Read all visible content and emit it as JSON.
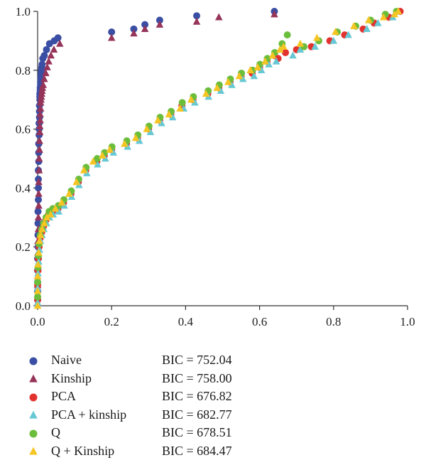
{
  "chart_data": {
    "type": "scatter",
    "title": "",
    "xlabel": "",
    "ylabel": "",
    "xlim": [
      0.0,
      1.0
    ],
    "ylim": [
      0.0,
      1.0
    ],
    "x_ticks": [
      "0.0",
      "0.2",
      "0.4",
      "0.6",
      "0.8",
      "1.0"
    ],
    "y_ticks": [
      "0.0",
      "0.2",
      "0.4",
      "0.6",
      "0.8",
      "1.0"
    ],
    "grid": false,
    "legend_position": "bottom",
    "series": [
      {
        "name": "Naive",
        "bic": "BIC = 752.04",
        "marker": "circle",
        "color": "#3a4ea3",
        "x": [
          0.0,
          0.0,
          0.0,
          0.0,
          0.0,
          0.001,
          0.001,
          0.001,
          0.001,
          0.002,
          0.002,
          0.002,
          0.002,
          0.003,
          0.003,
          0.003,
          0.004,
          0.004,
          0.004,
          0.005,
          0.005,
          0.005,
          0.006,
          0.006,
          0.006,
          0.007,
          0.007,
          0.008,
          0.008,
          0.009,
          0.009,
          0.01,
          0.01,
          0.011,
          0.012,
          0.014,
          0.018,
          0.024,
          0.032,
          0.045,
          0.055,
          0.2,
          0.26,
          0.29,
          0.33,
          0.43,
          0.64
        ],
        "y": [
          0.02,
          0.05,
          0.08,
          0.12,
          0.16,
          0.2,
          0.24,
          0.28,
          0.32,
          0.36,
          0.4,
          0.43,
          0.46,
          0.49,
          0.52,
          0.55,
          0.58,
          0.6,
          0.62,
          0.64,
          0.66,
          0.68,
          0.7,
          0.71,
          0.72,
          0.73,
          0.74,
          0.75,
          0.76,
          0.77,
          0.78,
          0.79,
          0.8,
          0.81,
          0.82,
          0.84,
          0.85,
          0.87,
          0.89,
          0.9,
          0.91,
          0.93,
          0.94,
          0.955,
          0.97,
          0.985,
          1.0
        ]
      },
      {
        "name": "Kinship",
        "bic": "BIC = 758.00",
        "marker": "triangle",
        "color": "#96345a",
        "x": [
          0.0,
          0.0,
          0.0,
          0.0,
          0.001,
          0.001,
          0.001,
          0.002,
          0.002,
          0.003,
          0.003,
          0.003,
          0.004,
          0.004,
          0.005,
          0.005,
          0.006,
          0.006,
          0.007,
          0.007,
          0.008,
          0.008,
          0.009,
          0.01,
          0.011,
          0.012,
          0.013,
          0.015,
          0.018,
          0.022,
          0.026,
          0.03,
          0.036,
          0.044,
          0.06,
          0.2,
          0.26,
          0.29,
          0.33,
          0.43,
          0.49,
          0.64
        ],
        "y": [
          0.01,
          0.04,
          0.07,
          0.1,
          0.14,
          0.18,
          0.22,
          0.26,
          0.3,
          0.34,
          0.38,
          0.42,
          0.46,
          0.5,
          0.53,
          0.56,
          0.59,
          0.61,
          0.63,
          0.65,
          0.67,
          0.69,
          0.7,
          0.71,
          0.72,
          0.73,
          0.74,
          0.75,
          0.77,
          0.79,
          0.81,
          0.83,
          0.85,
          0.87,
          0.89,
          0.91,
          0.925,
          0.94,
          0.955,
          0.965,
          0.98,
          0.99
        ]
      },
      {
        "name": "PCA",
        "bic": "BIC = 676.82",
        "marker": "circle",
        "color": "#e2322f",
        "x": [
          0.0,
          0.0,
          0.001,
          0.002,
          0.004,
          0.007,
          0.011,
          0.016,
          0.022,
          0.03,
          0.04,
          0.055,
          0.07,
          0.09,
          0.11,
          0.13,
          0.16,
          0.18,
          0.2,
          0.24,
          0.27,
          0.3,
          0.33,
          0.36,
          0.39,
          0.42,
          0.46,
          0.49,
          0.52,
          0.55,
          0.58,
          0.6,
          0.62,
          0.64,
          0.65,
          0.67,
          0.7,
          0.74,
          0.79,
          0.83,
          0.88,
          0.91,
          0.95,
          0.98
        ],
        "y": [
          0.02,
          0.07,
          0.12,
          0.16,
          0.2,
          0.23,
          0.25,
          0.27,
          0.29,
          0.31,
          0.32,
          0.33,
          0.35,
          0.38,
          0.42,
          0.46,
          0.49,
          0.51,
          0.53,
          0.55,
          0.57,
          0.6,
          0.63,
          0.65,
          0.68,
          0.7,
          0.72,
          0.74,
          0.76,
          0.78,
          0.79,
          0.81,
          0.83,
          0.85,
          0.84,
          0.86,
          0.87,
          0.88,
          0.9,
          0.92,
          0.94,
          0.96,
          0.98,
          1.0
        ]
      },
      {
        "name": "PCA + kinship",
        "bic": "BIC = 682.77",
        "marker": "triangle",
        "color": "#66c8d4",
        "x": [
          0.0,
          0.0,
          0.001,
          0.003,
          0.005,
          0.008,
          0.012,
          0.017,
          0.024,
          0.032,
          0.042,
          0.057,
          0.072,
          0.092,
          0.112,
          0.133,
          0.162,
          0.183,
          0.205,
          0.243,
          0.275,
          0.305,
          0.335,
          0.365,
          0.395,
          0.425,
          0.462,
          0.495,
          0.525,
          0.555,
          0.585,
          0.605,
          0.625,
          0.645,
          0.69,
          0.71,
          0.75,
          0.8,
          0.84,
          0.89,
          0.92,
          0.96
        ],
        "y": [
          0.01,
          0.06,
          0.11,
          0.15,
          0.19,
          0.22,
          0.24,
          0.26,
          0.28,
          0.3,
          0.31,
          0.32,
          0.34,
          0.37,
          0.41,
          0.45,
          0.48,
          0.5,
          0.52,
          0.54,
          0.56,
          0.59,
          0.62,
          0.64,
          0.67,
          0.69,
          0.71,
          0.73,
          0.75,
          0.77,
          0.78,
          0.8,
          0.82,
          0.83,
          0.85,
          0.87,
          0.88,
          0.9,
          0.92,
          0.94,
          0.96,
          0.98
        ]
      },
      {
        "name": "Q",
        "bic": "BIC = 678.51",
        "marker": "circle",
        "color": "#6bbd3c",
        "x": [
          0.0,
          0.0,
          0.001,
          0.002,
          0.004,
          0.007,
          0.011,
          0.016,
          0.023,
          0.031,
          0.041,
          0.056,
          0.071,
          0.091,
          0.111,
          0.131,
          0.161,
          0.181,
          0.201,
          0.241,
          0.271,
          0.301,
          0.331,
          0.361,
          0.391,
          0.421,
          0.461,
          0.491,
          0.521,
          0.551,
          0.581,
          0.601,
          0.621,
          0.641,
          0.661,
          0.675,
          0.72,
          0.76,
          0.81,
          0.86,
          0.9,
          0.94,
          0.97
        ],
        "y": [
          0.03,
          0.08,
          0.13,
          0.17,
          0.21,
          0.24,
          0.26,
          0.28,
          0.3,
          0.32,
          0.33,
          0.34,
          0.36,
          0.39,
          0.43,
          0.47,
          0.5,
          0.52,
          0.54,
          0.56,
          0.58,
          0.61,
          0.64,
          0.66,
          0.69,
          0.71,
          0.73,
          0.75,
          0.77,
          0.79,
          0.8,
          0.82,
          0.84,
          0.86,
          0.89,
          0.92,
          0.88,
          0.9,
          0.93,
          0.95,
          0.97,
          0.99,
          1.0
        ]
      },
      {
        "name": "Q + Kinship",
        "bic": "BIC = 684.47",
        "marker": "triangle",
        "color": "#f5c523",
        "x": [
          0.0,
          0.0,
          0.0,
          0.001,
          0.003,
          0.005,
          0.008,
          0.012,
          0.018,
          0.025,
          0.035,
          0.048,
          0.065,
          0.085,
          0.105,
          0.125,
          0.15,
          0.175,
          0.195,
          0.235,
          0.265,
          0.295,
          0.325,
          0.355,
          0.385,
          0.415,
          0.455,
          0.485,
          0.515,
          0.545,
          0.575,
          0.595,
          0.615,
          0.635,
          0.655,
          0.665,
          0.71,
          0.755,
          0.805,
          0.855,
          0.895,
          0.935,
          0.965,
          0.975
        ],
        "y": [
          0.0,
          0.05,
          0.1,
          0.14,
          0.18,
          0.22,
          0.24,
          0.26,
          0.28,
          0.3,
          0.31,
          0.33,
          0.35,
          0.38,
          0.42,
          0.46,
          0.49,
          0.51,
          0.53,
          0.55,
          0.57,
          0.6,
          0.63,
          0.65,
          0.67,
          0.7,
          0.72,
          0.74,
          0.76,
          0.78,
          0.8,
          0.81,
          0.83,
          0.85,
          0.87,
          0.88,
          0.89,
          0.91,
          0.93,
          0.95,
          0.97,
          0.98,
          0.99,
          1.0
        ]
      }
    ]
  }
}
